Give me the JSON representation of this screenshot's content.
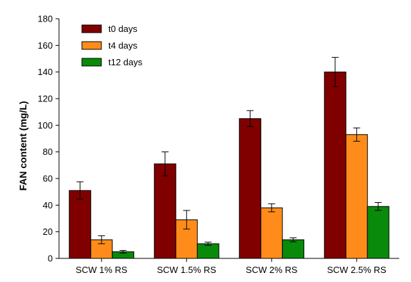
{
  "chart_data": {
    "type": "bar",
    "title": "",
    "xlabel": "",
    "ylabel": "FAN content (mg/L)",
    "ylim": [
      0,
      180
    ],
    "yticks": [
      0,
      20,
      40,
      60,
      80,
      100,
      120,
      140,
      160,
      180
    ],
    "grid": false,
    "legend_position": "top-left",
    "categories": [
      "SCW 1% RS",
      "SCW 1.5% RS",
      "SCW 2% RS",
      "SCW 2.5% RS"
    ],
    "series": [
      {
        "name": "t0 days",
        "color": "#800000",
        "values": [
          51,
          71,
          105,
          140
        ],
        "errors": [
          6.5,
          9,
          6,
          11
        ]
      },
      {
        "name": "t4 days",
        "color": "#FF8C1A",
        "values": [
          14,
          29,
          38,
          93
        ],
        "errors": [
          3,
          7,
          3,
          5
        ]
      },
      {
        "name": "t12 days",
        "color": "#0A8A0A",
        "values": [
          5,
          11,
          14,
          39
        ],
        "errors": [
          1,
          1.2,
          1.5,
          3
        ]
      }
    ]
  }
}
